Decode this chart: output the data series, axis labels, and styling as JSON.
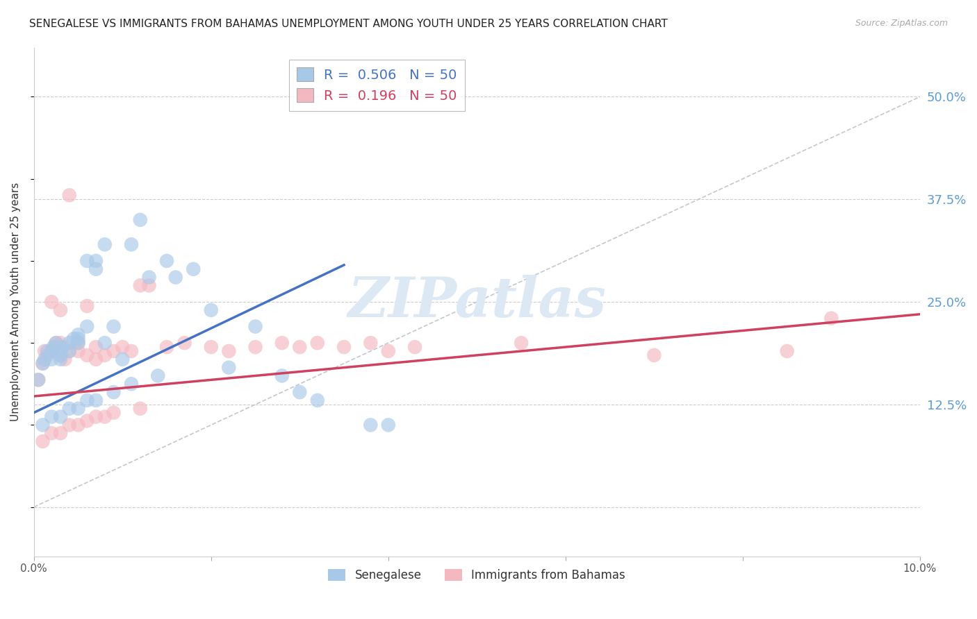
{
  "title": "SENEGALESE VS IMMIGRANTS FROM BAHAMAS UNEMPLOYMENT AMONG YOUTH UNDER 25 YEARS CORRELATION CHART",
  "source": "Source: ZipAtlas.com",
  "ylabel": "Unemployment Among Youth under 25 years",
  "senegalese_color": "#a8c8e8",
  "bahamas_color": "#f4b8c0",
  "trendline_senegalese_color": "#4472c4",
  "trendline_bahamas_color": "#d04060",
  "diagonal_color": "#c0c8d0",
  "watermark_text": "ZIPatlas",
  "watermark_color": "#dce8f4",
  "background_color": "#ffffff",
  "title_fontsize": 11,
  "source_fontsize": 9,
  "xlim": [
    0.0,
    0.1
  ],
  "ylim": [
    -0.06,
    0.56
  ],
  "ytick_vals": [
    0.0,
    0.125,
    0.25,
    0.375,
    0.5
  ],
  "ytick_labels": [
    "",
    "12.5%",
    "25.0%",
    "37.5%",
    "50.0%"
  ],
  "xtick_positions": [
    0.0,
    0.02,
    0.04,
    0.06,
    0.08,
    0.1
  ],
  "xtick_labels": [
    "0.0%",
    "",
    "",
    "",
    "",
    "10.0%"
  ],
  "sen_x": [
    0.0005,
    0.001,
    0.0012,
    0.0015,
    0.002,
    0.002,
    0.0022,
    0.0025,
    0.003,
    0.003,
    0.003,
    0.0032,
    0.004,
    0.004,
    0.0045,
    0.005,
    0.005,
    0.005,
    0.006,
    0.006,
    0.007,
    0.007,
    0.008,
    0.008,
    0.009,
    0.01,
    0.011,
    0.012,
    0.013,
    0.015,
    0.016,
    0.018,
    0.02,
    0.022,
    0.025,
    0.028,
    0.03,
    0.032,
    0.038,
    0.04,
    0.001,
    0.002,
    0.003,
    0.004,
    0.005,
    0.006,
    0.007,
    0.009,
    0.011,
    0.014
  ],
  "sen_y": [
    0.155,
    0.175,
    0.18,
    0.19,
    0.18,
    0.19,
    0.195,
    0.2,
    0.18,
    0.185,
    0.19,
    0.195,
    0.19,
    0.2,
    0.205,
    0.2,
    0.205,
    0.21,
    0.22,
    0.3,
    0.29,
    0.3,
    0.2,
    0.32,
    0.22,
    0.18,
    0.32,
    0.35,
    0.28,
    0.3,
    0.28,
    0.29,
    0.24,
    0.17,
    0.22,
    0.16,
    0.14,
    0.13,
    0.1,
    0.1,
    0.1,
    0.11,
    0.11,
    0.12,
    0.12,
    0.13,
    0.13,
    0.14,
    0.15,
    0.16
  ],
  "bah_x": [
    0.0005,
    0.001,
    0.0012,
    0.0015,
    0.002,
    0.002,
    0.0025,
    0.003,
    0.003,
    0.0035,
    0.004,
    0.004,
    0.005,
    0.005,
    0.006,
    0.006,
    0.007,
    0.007,
    0.008,
    0.009,
    0.01,
    0.011,
    0.012,
    0.013,
    0.015,
    0.017,
    0.02,
    0.022,
    0.025,
    0.028,
    0.03,
    0.032,
    0.035,
    0.038,
    0.04,
    0.043,
    0.055,
    0.07,
    0.085,
    0.09,
    0.001,
    0.002,
    0.003,
    0.004,
    0.005,
    0.006,
    0.007,
    0.008,
    0.009,
    0.012
  ],
  "bah_y": [
    0.155,
    0.175,
    0.19,
    0.185,
    0.19,
    0.25,
    0.2,
    0.2,
    0.24,
    0.18,
    0.19,
    0.38,
    0.19,
    0.2,
    0.185,
    0.245,
    0.18,
    0.195,
    0.185,
    0.19,
    0.195,
    0.19,
    0.27,
    0.27,
    0.195,
    0.2,
    0.195,
    0.19,
    0.195,
    0.2,
    0.195,
    0.2,
    0.195,
    0.2,
    0.19,
    0.195,
    0.2,
    0.185,
    0.19,
    0.23,
    0.08,
    0.09,
    0.09,
    0.1,
    0.1,
    0.105,
    0.11,
    0.11,
    0.115,
    0.12
  ],
  "trendline_sen_x0": 0.0,
  "trendline_sen_y0": 0.115,
  "trendline_sen_x1": 0.035,
  "trendline_sen_y1": 0.295,
  "trendline_bah_x0": 0.0,
  "trendline_bah_y0": 0.135,
  "trendline_bah_x1": 0.1,
  "trendline_bah_y1": 0.235,
  "legend_label_sen": "R =  0.506   N = 50",
  "legend_label_bah": "R =  0.196   N = 50",
  "bottom_legend_sen": "Senegalese",
  "bottom_legend_bah": "Immigrants from Bahamas"
}
